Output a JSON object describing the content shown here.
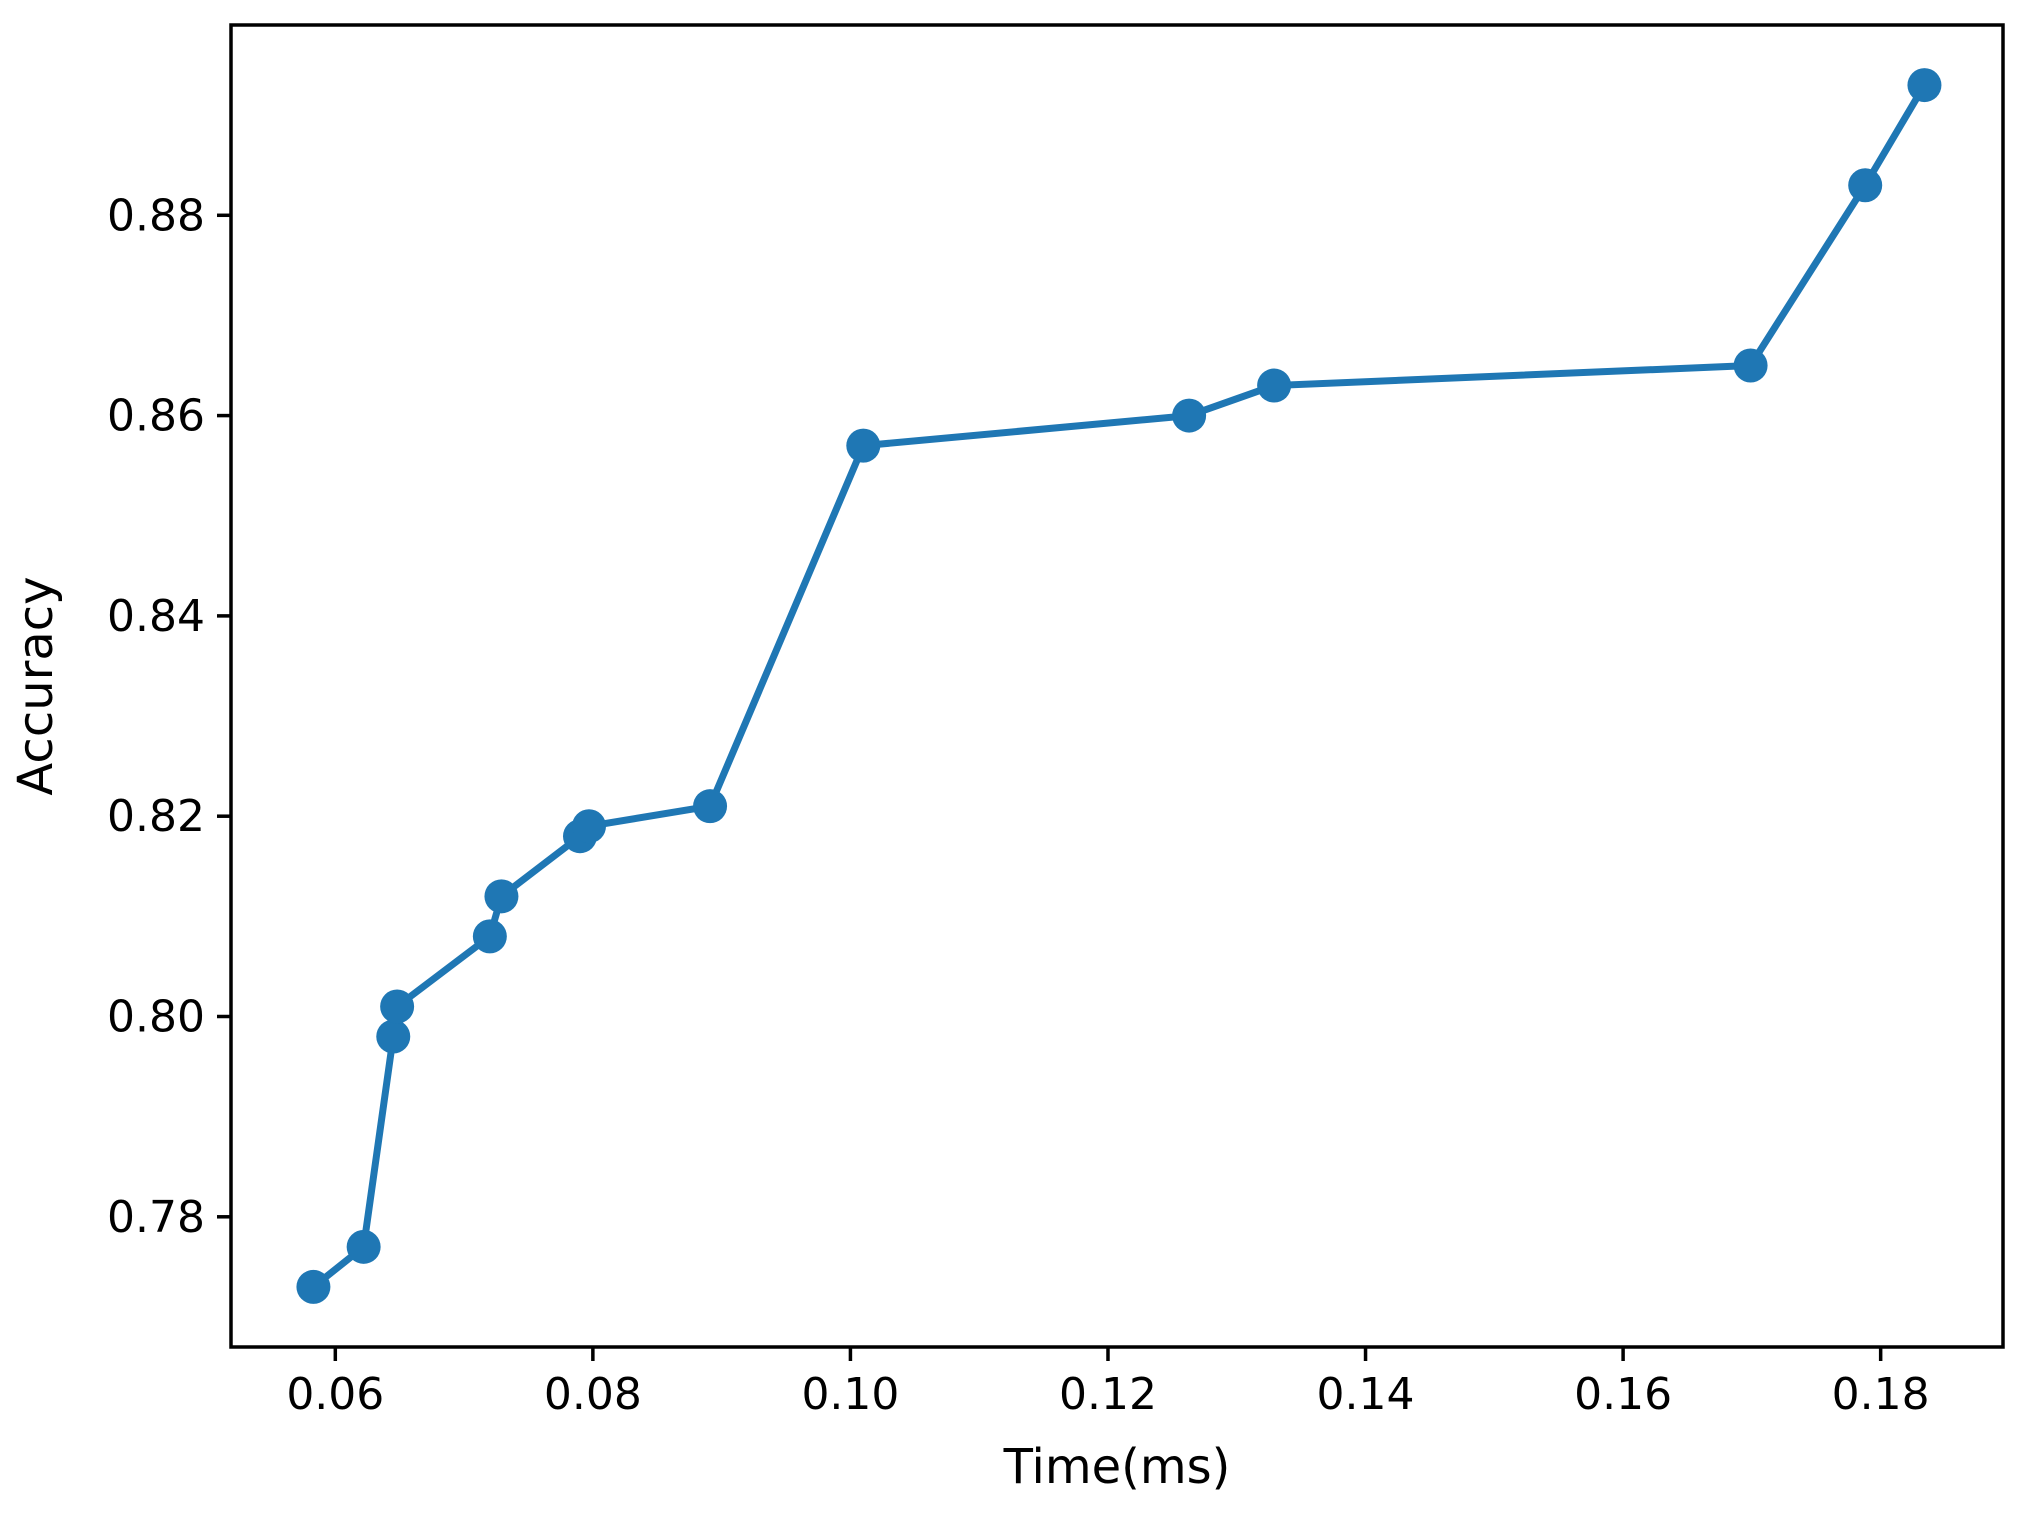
{
  "chart_data": {
    "type": "line",
    "title": "",
    "xlabel": "Time(ms)",
    "ylabel": "Accuracy",
    "xlim": [
      0.0519,
      0.1895
    ],
    "ylim": [
      0.767,
      0.899
    ],
    "grid": false,
    "legend_position": "none",
    "marker": "circle",
    "line_color": "#1f77b4",
    "spine_color": "#000000",
    "x_ticks": [
      0.06,
      0.08,
      0.1,
      0.12,
      0.14,
      0.16,
      0.18
    ],
    "x_tick_labels": [
      "0.06",
      "0.08",
      "0.10",
      "0.12",
      "0.14",
      "0.16",
      "0.18"
    ],
    "y_ticks": [
      0.78,
      0.8,
      0.82,
      0.84,
      0.86,
      0.88
    ],
    "y_tick_labels": [
      "0.78",
      "0.80",
      "0.82",
      "0.84",
      "0.86",
      "0.88"
    ],
    "series": [
      {
        "name": "accuracy-vs-time",
        "color": "#1f77b4",
        "points": [
          [
            0.0583,
            0.773
          ],
          [
            0.0622,
            0.777
          ],
          [
            0.0645,
            0.798
          ],
          [
            0.0648,
            0.801
          ],
          [
            0.072,
            0.808
          ],
          [
            0.0729,
            0.812
          ],
          [
            0.079,
            0.818
          ],
          [
            0.0797,
            0.819
          ],
          [
            0.0891,
            0.821
          ],
          [
            0.101,
            0.857
          ],
          [
            0.1263,
            0.86
          ],
          [
            0.1329,
            0.863
          ],
          [
            0.1699,
            0.865
          ],
          [
            0.1788,
            0.883
          ],
          [
            0.1834,
            0.893
          ]
        ]
      }
    ]
  }
}
